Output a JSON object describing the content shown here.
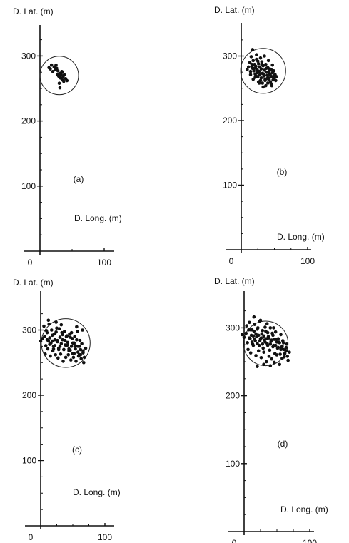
{
  "chart_data": [
    {
      "type": "scatter",
      "panel_label": "(a)",
      "xlabel": "D. Long. (m)",
      "ylabel": "D. Lat. (m)",
      "xlim": [
        0,
        100
      ],
      "ylim": [
        0,
        340
      ],
      "x_ticks": [
        0,
        100
      ],
      "y_ticks": [
        100,
        200,
        300
      ],
      "circle": {
        "cx": 30,
        "cy": 270,
        "r": 30
      },
      "x": [
        14,
        16,
        18,
        20,
        22,
        24,
        26,
        27,
        28,
        29,
        30,
        31,
        32,
        33,
        34,
        35,
        36,
        37,
        38,
        40,
        42,
        30,
        31,
        25,
        35
      ],
      "y": [
        282,
        280,
        286,
        276,
        283,
        279,
        281,
        271,
        277,
        269,
        268,
        273,
        266,
        271,
        276,
        263,
        268,
        261,
        271,
        265,
        262,
        258,
        251,
        286,
        275
      ]
    },
    {
      "type": "scatter",
      "panel_label": "(b)",
      "xlabel": "D. Long. (m)",
      "ylabel": "D. Lat. (m)",
      "xlim": [
        0,
        100
      ],
      "ylim": [
        0,
        340
      ],
      "x_ticks": [
        0,
        100
      ],
      "y_ticks": [
        100,
        200,
        300
      ],
      "circle": {
        "cx": 33,
        "cy": 277,
        "r": 34
      },
      "x": [
        9,
        11,
        13,
        14,
        15,
        16,
        17,
        18,
        19,
        20,
        21,
        22,
        23,
        24,
        25,
        26,
        27,
        28,
        29,
        30,
        31,
        32,
        33,
        34,
        35,
        36,
        37,
        38,
        39,
        40,
        41,
        42,
        43,
        44,
        45,
        46,
        47,
        48,
        49,
        50,
        51,
        52,
        53,
        14,
        16,
        18,
        20,
        22,
        24,
        26,
        28,
        30,
        32,
        34,
        36,
        38,
        40,
        42,
        44,
        46,
        48,
        50,
        17,
        23,
        29,
        35,
        41,
        47,
        21,
        27,
        33,
        39,
        45,
        25,
        31,
        37,
        43
      ],
      "y": [
        279,
        283,
        290,
        276,
        299,
        284,
        281,
        293,
        277,
        287,
        272,
        284,
        295,
        279,
        268,
        288,
        276,
        283,
        262,
        280,
        291,
        273,
        285,
        269,
        278,
        264,
        287,
        275,
        270,
        282,
        266,
        276,
        272,
        260,
        279,
        268,
        274,
        263,
        277,
        266,
        271,
        262,
        268,
        271,
        287,
        264,
        281,
        269,
        274,
        260,
        271,
        266,
        258,
        272,
        262,
        281,
        258,
        264,
        270,
        254,
        276,
        270,
        310,
        302,
        297,
        300,
        293,
        286,
        267,
        258,
        252,
        265,
        257,
        292,
        287,
        254,
        280
      ]
    },
    {
      "type": "scatter",
      "panel_label": "(c)",
      "xlabel": "D. Long. (m)",
      "ylabel": "D. Lat. (m)",
      "xlim": [
        0,
        100
      ],
      "ylim": [
        0,
        340
      ],
      "x_ticks": [
        0,
        100
      ],
      "y_ticks": [
        100,
        200,
        300
      ],
      "circle": {
        "cx": 39,
        "cy": 280,
        "r": 38
      },
      "x": [
        0,
        3,
        6,
        8,
        10,
        12,
        14,
        16,
        18,
        20,
        22,
        24,
        26,
        28,
        30,
        32,
        34,
        36,
        38,
        40,
        42,
        44,
        46,
        48,
        50,
        52,
        54,
        56,
        58,
        60,
        62,
        64,
        66,
        68,
        70,
        5,
        9,
        13,
        17,
        21,
        25,
        29,
        33,
        37,
        41,
        45,
        49,
        53,
        57,
        61,
        65,
        7,
        11,
        15,
        19,
        23,
        27,
        31,
        35,
        39,
        43,
        47,
        51,
        55,
        59,
        63,
        67,
        10,
        18,
        26,
        34,
        42,
        50,
        58,
        66,
        14,
        22,
        30,
        38,
        46,
        54,
        62,
        20,
        28,
        36,
        44,
        52,
        60,
        12,
        24,
        32,
        40,
        48,
        56
      ],
      "y": [
        283,
        287,
        290,
        276,
        296,
        283,
        288,
        280,
        292,
        275,
        285,
        297,
        282,
        272,
        289,
        279,
        293,
        270,
        284,
        276,
        281,
        268,
        289,
        275,
        264,
        280,
        271,
        285,
        266,
        275,
        262,
        279,
        268,
        258,
        272,
        306,
        299,
        309,
        300,
        294,
        303,
        302,
        296,
        298,
        291,
        294,
        287,
        290,
        298,
        284,
        300,
        263,
        271,
        260,
        268,
        262,
        257,
        263,
        252,
        258,
        262,
        254,
        258,
        252,
        260,
        256,
        250,
        285,
        283,
        284,
        285,
        277,
        280,
        275,
        265,
        278,
        276,
        275,
        277,
        269,
        276,
        270,
        271,
        270,
        270,
        271,
        264,
        262,
        315,
        312,
        308,
        290,
        296,
        305
      ]
    },
    {
      "type": "scatter",
      "panel_label": "(d)",
      "xlabel": "D. Long. (m)",
      "ylabel": "D. Lat. (m)",
      "xlim": [
        0,
        100
      ],
      "ylim": [
        0,
        340
      ],
      "x_ticks": [
        0,
        100
      ],
      "y_ticks": [
        100,
        200,
        300
      ],
      "circle": {
        "cx": 33,
        "cy": 277,
        "r": 34
      },
      "x": [
        -3,
        0,
        3,
        5,
        7,
        9,
        11,
        13,
        15,
        17,
        19,
        21,
        23,
        25,
        27,
        29,
        31,
        33,
        35,
        37,
        39,
        41,
        43,
        45,
        47,
        49,
        51,
        53,
        55,
        57,
        59,
        61,
        63,
        65,
        67,
        69,
        4,
        8,
        12,
        16,
        20,
        24,
        28,
        32,
        36,
        40,
        44,
        48,
        52,
        56,
        60,
        64,
        6,
        10,
        14,
        18,
        22,
        26,
        30,
        34,
        38,
        42,
        46,
        50,
        54,
        58,
        62,
        66,
        8,
        16,
        24,
        32,
        40,
        48,
        56,
        64,
        12,
        20,
        28,
        36,
        44,
        52,
        60,
        10,
        18,
        26,
        34,
        42,
        50,
        58,
        14,
        22,
        30,
        38,
        46,
        54,
        15,
        25,
        35,
        45,
        20,
        30,
        40
      ],
      "y": [
        290,
        286,
        292,
        278,
        297,
        284,
        289,
        276,
        295,
        281,
        287,
        300,
        274,
        284,
        291,
        270,
        282,
        295,
        277,
        287,
        267,
        280,
        292,
        274,
        262,
        283,
        270,
        279,
        261,
        271,
        281,
        257,
        267,
        276,
        252,
        264,
        303,
        308,
        297,
        305,
        298,
        310,
        296,
        301,
        293,
        300,
        289,
        294,
        284,
        290,
        278,
        271,
        268,
        263,
        274,
        259,
        266,
        256,
        264,
        250,
        258,
        254,
        249,
        260,
        246,
        255,
        262,
        258,
        285,
        283,
        281,
        279,
        276,
        274,
        268,
        266,
        279,
        277,
        276,
        274,
        272,
        271,
        268,
        297,
        291,
        285,
        284,
        282,
        279,
        273,
        288,
        289,
        288,
        285,
        283,
        278,
        316,
        311,
        306,
        300,
        243,
        246,
        244
      ]
    }
  ]
}
